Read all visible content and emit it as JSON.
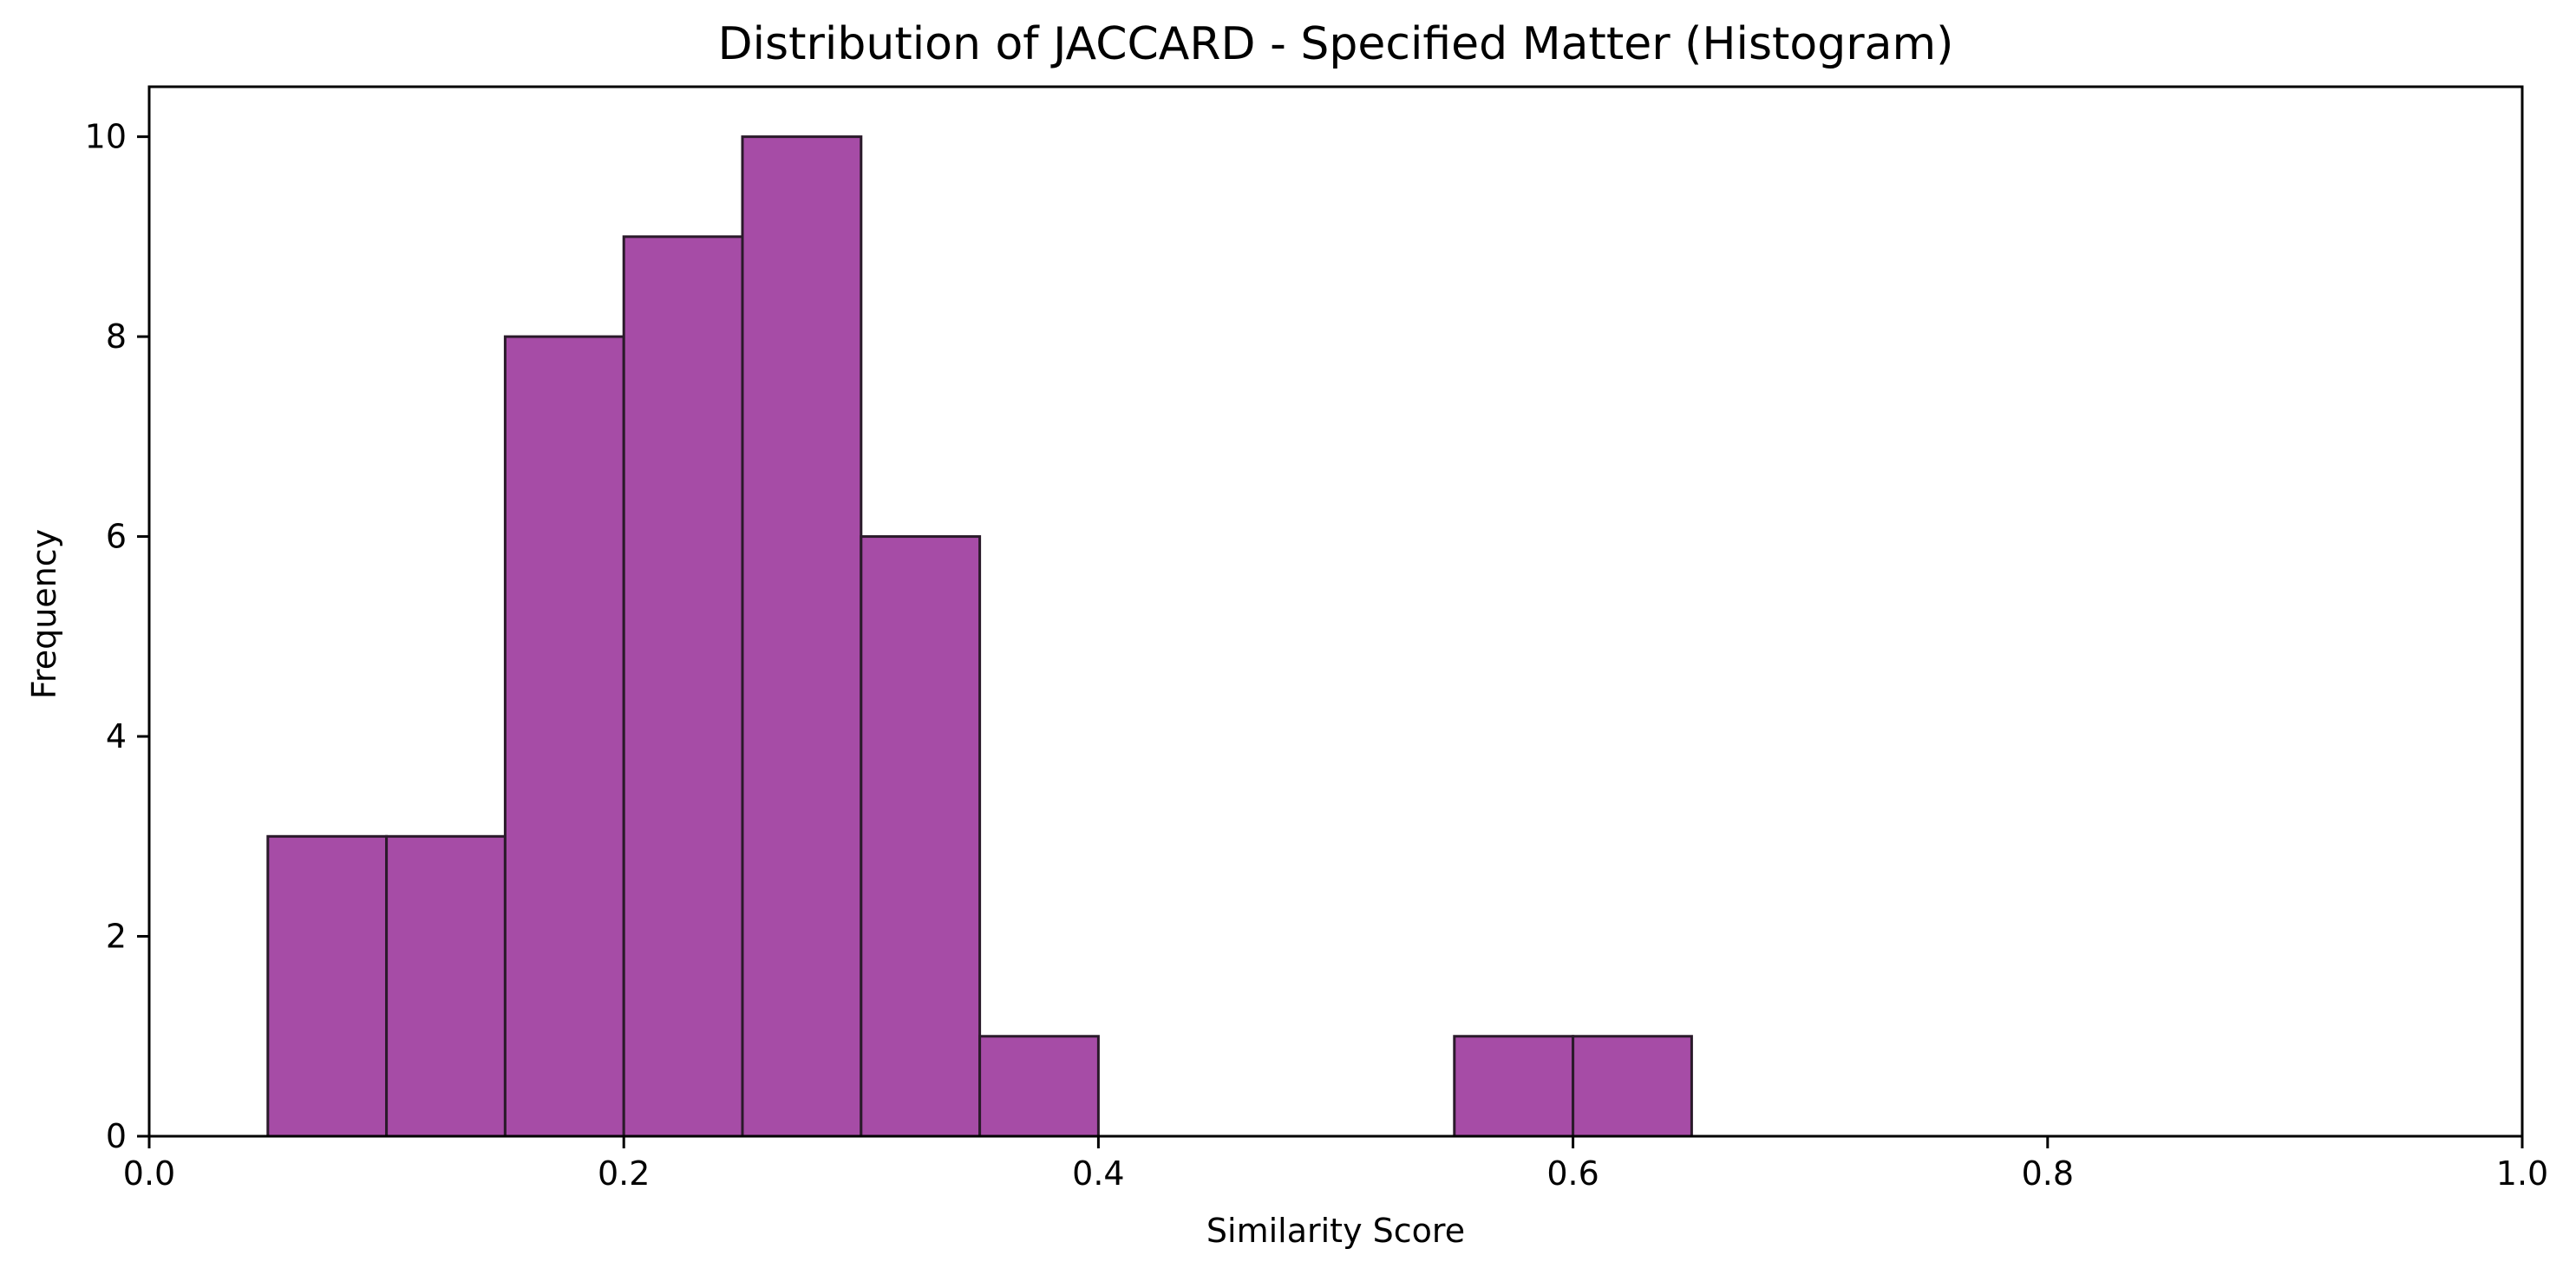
{
  "chart_data": {
    "type": "bar",
    "subtype": "histogram",
    "title": "Distribution of JACCARD - Specified Matter (Histogram)",
    "xlabel": "Similarity Score",
    "ylabel": "Frequency",
    "xlim": [
      0.0,
      1.0
    ],
    "ylim": [
      0,
      10.5
    ],
    "xticks": [
      "0.0",
      "0.2",
      "0.4",
      "0.6",
      "0.8",
      "1.0"
    ],
    "yticks": [
      "0",
      "2",
      "4",
      "6",
      "8",
      "10"
    ],
    "grid": false,
    "legend": "none",
    "bins": [
      {
        "start": 0.05,
        "end": 0.1,
        "count": 3
      },
      {
        "start": 0.1,
        "end": 0.15,
        "count": 3
      },
      {
        "start": 0.15,
        "end": 0.2,
        "count": 8
      },
      {
        "start": 0.2,
        "end": 0.25,
        "count": 9
      },
      {
        "start": 0.25,
        "end": 0.3,
        "count": 10
      },
      {
        "start": 0.3,
        "end": 0.35,
        "count": 6
      },
      {
        "start": 0.35,
        "end": 0.4,
        "count": 1
      },
      {
        "start": 0.55,
        "end": 0.6,
        "count": 1
      },
      {
        "start": 0.6,
        "end": 0.65,
        "count": 1
      }
    ],
    "colors": {
      "bar_fill": "#a64ca6",
      "bar_edge": "#2a1a2a",
      "axis": "#000000"
    }
  }
}
